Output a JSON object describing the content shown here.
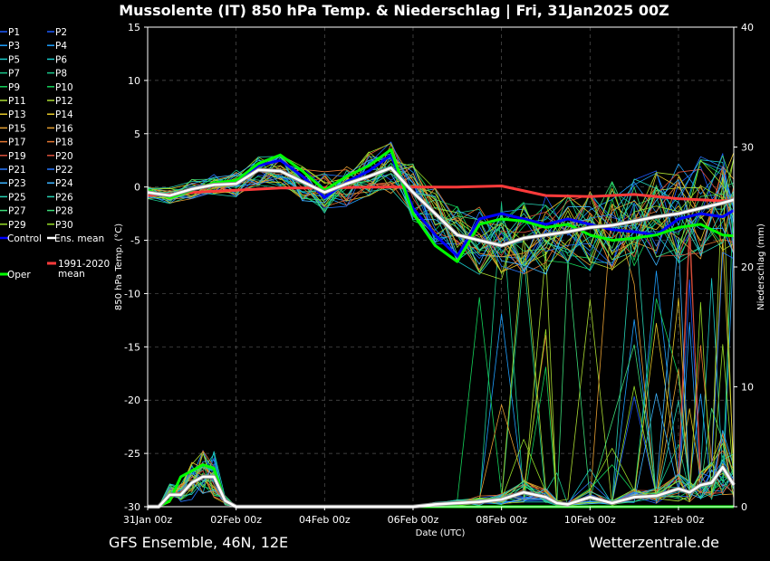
{
  "title": "Mussolente  (IT)  850 hPa Temp. & Niederschlag | Fri, 31Jan2025 00Z",
  "footer_left": "GFS Ensemble, 46N, 12E",
  "footer_right": "Wetterzentrale.de",
  "chart_data": {
    "type": "line",
    "xlabel": "Date (UTC)",
    "ylabel_left": "850 hPa Temp. (°C)",
    "ylabel_right": "Niederschlag (mm)",
    "ylim_left": [
      -30,
      15
    ],
    "ylim_right": [
      0,
      40
    ],
    "xlim_days": [
      0,
      13.25
    ],
    "x_ticks": [
      "31Jan 00z",
      "02Feb 00z",
      "04Feb 00z",
      "06Feb 00z",
      "08Feb 00z",
      "10Feb 00z",
      "12Feb 00z"
    ],
    "y_ticks_left": [
      "15",
      "10",
      "5",
      "0",
      "-5",
      "-10",
      "-15",
      "-20",
      "-25",
      "-30"
    ],
    "y_ticks_right": [
      "40",
      "30",
      "20",
      "10",
      "0"
    ],
    "grid": true,
    "legend_position": "left",
    "members": [
      "P1",
      "P2",
      "P3",
      "P4",
      "P5",
      "P6",
      "P7",
      "P8",
      "P9",
      "P10",
      "P11",
      "P12",
      "P13",
      "P14",
      "P15",
      "P16",
      "P17",
      "P18",
      "P19",
      "P20",
      "P21",
      "P22",
      "P23",
      "P24",
      "P25",
      "P26",
      "P27",
      "P28",
      "P29",
      "P30"
    ],
    "member_colors": [
      "#1e5aff",
      "#1e5aff",
      "#1ea0ff",
      "#1ea0ff",
      "#19c8c8",
      "#19c8c8",
      "#19c88c",
      "#19c88c",
      "#14d25a",
      "#14d25a",
      "#aadc32",
      "#aadc32",
      "#e6c828",
      "#e6c828",
      "#e6a032",
      "#e6a032",
      "#e67832",
      "#e67832",
      "#dc503c",
      "#dc503c",
      "#2878ff",
      "#2878ff",
      "#3cb4ff",
      "#3cb4ff",
      "#28d2b4",
      "#28d2b4",
      "#3cdc78",
      "#3cdc78",
      "#96dc28",
      "#96dc28"
    ],
    "special_series": [
      {
        "name": "Control",
        "color": "#0000ff"
      },
      {
        "name": "Ens. mean",
        "color": "#ffffff"
      },
      {
        "name": "1991-2020 mean",
        "color": "#ff3b3b"
      },
      {
        "name": "Oper",
        "color": "#00ff00"
      }
    ],
    "ens_mean_temp": {
      "x": [
        0,
        0.5,
        1,
        1.5,
        2,
        2.5,
        3,
        3.5,
        4,
        4.5,
        5,
        5.5,
        6,
        6.5,
        7,
        7.5,
        8,
        8.5,
        9,
        9.5,
        10,
        10.5,
        11,
        11.5,
        12,
        12.5,
        13,
        13.25
      ],
      "y": [
        -0.5,
        -0.8,
        -0.2,
        0.2,
        0.3,
        1.6,
        1.5,
        0.5,
        -0.5,
        0.3,
        1,
        1.8,
        -0.5,
        -2.5,
        -4.5,
        -5,
        -5.5,
        -4.8,
        -4.5,
        -4.2,
        -3.8,
        -3.6,
        -3.2,
        -2.8,
        -2.5,
        -2,
        -1.5,
        -1.2
      ]
    },
    "clim_mean_temp": {
      "x": [
        0,
        1,
        2,
        3,
        4,
        5,
        6,
        7,
        8,
        9,
        10,
        11,
        12,
        13,
        13.25
      ],
      "y": [
        -0.8,
        -0.5,
        -0.3,
        -0.1,
        -0.1,
        0,
        0,
        0,
        0.1,
        -0.8,
        -0.9,
        -0.7,
        -1.1,
        -1.3,
        -1.2
      ]
    },
    "control_temp": {
      "x": [
        0,
        0.5,
        1,
        1.5,
        2,
        2.5,
        3,
        3.5,
        4,
        4.5,
        5,
        5.5,
        6,
        6.5,
        7,
        7.5,
        8,
        8.5,
        9,
        9.5,
        10,
        10.5,
        11,
        11.5,
        12,
        12.5,
        13,
        13.25
      ],
      "y": [
        -0.5,
        -0.9,
        -0.1,
        0.2,
        0.5,
        2,
        2.5,
        1,
        -1,
        0.5,
        1.5,
        3,
        -2,
        -4.5,
        -6.5,
        -3,
        -2.5,
        -3,
        -3.5,
        -3,
        -3.5,
        -4,
        -4.2,
        -4.5,
        -3,
        -2.5,
        -2.8,
        -2.2
      ]
    },
    "oper_temp": {
      "x": [
        0,
        0.5,
        1,
        1.5,
        2,
        2.5,
        3,
        3.5,
        4,
        4.5,
        5,
        5.5,
        6,
        6.5,
        7,
        7.5,
        8,
        8.5,
        9,
        9.5,
        10,
        10.5,
        11,
        11.5,
        12,
        12.5,
        13,
        13.25
      ],
      "y": [
        -0.3,
        -1,
        -0.3,
        0.4,
        0.6,
        2.2,
        3,
        1.5,
        -0.3,
        1,
        2,
        3.5,
        -2.5,
        -5.5,
        -7,
        -3.5,
        -3,
        -3.2,
        -3.8,
        -3.5,
        -4.5,
        -5,
        -4.8,
        -4.5,
        -3.8,
        -3.5,
        -4.5,
        -4.6
      ]
    },
    "ens_mean_precip": {
      "x": [
        0,
        0.25,
        0.5,
        0.75,
        1,
        1.25,
        1.5,
        1.75,
        2,
        3,
        4,
        5,
        6,
        6.5,
        7,
        7.5,
        8,
        8.5,
        9,
        9.25,
        9.5,
        10,
        10.5,
        11,
        11.5,
        12,
        12.25,
        12.5,
        12.75,
        13,
        13.25
      ],
      "y": [
        0,
        0,
        1,
        1,
        2,
        2.5,
        2.5,
        0.5,
        0,
        0,
        0,
        0,
        0,
        0.2,
        0.3,
        0.4,
        0.6,
        1.2,
        0.8,
        0.3,
        0.2,
        0.8,
        0.3,
        0.8,
        0.9,
        1.5,
        1.2,
        1.8,
        2,
        3.3,
        1.8
      ]
    },
    "oper_precip": {
      "x": [
        0,
        0.25,
        0.5,
        0.75,
        1,
        1.25,
        1.5,
        1.75,
        2,
        3,
        4,
        5,
        6,
        13.25
      ],
      "y": [
        0,
        0,
        0.5,
        2.5,
        3,
        3.5,
        3.2,
        0.5,
        0,
        0,
        0,
        0,
        0,
        0
      ]
    }
  }
}
